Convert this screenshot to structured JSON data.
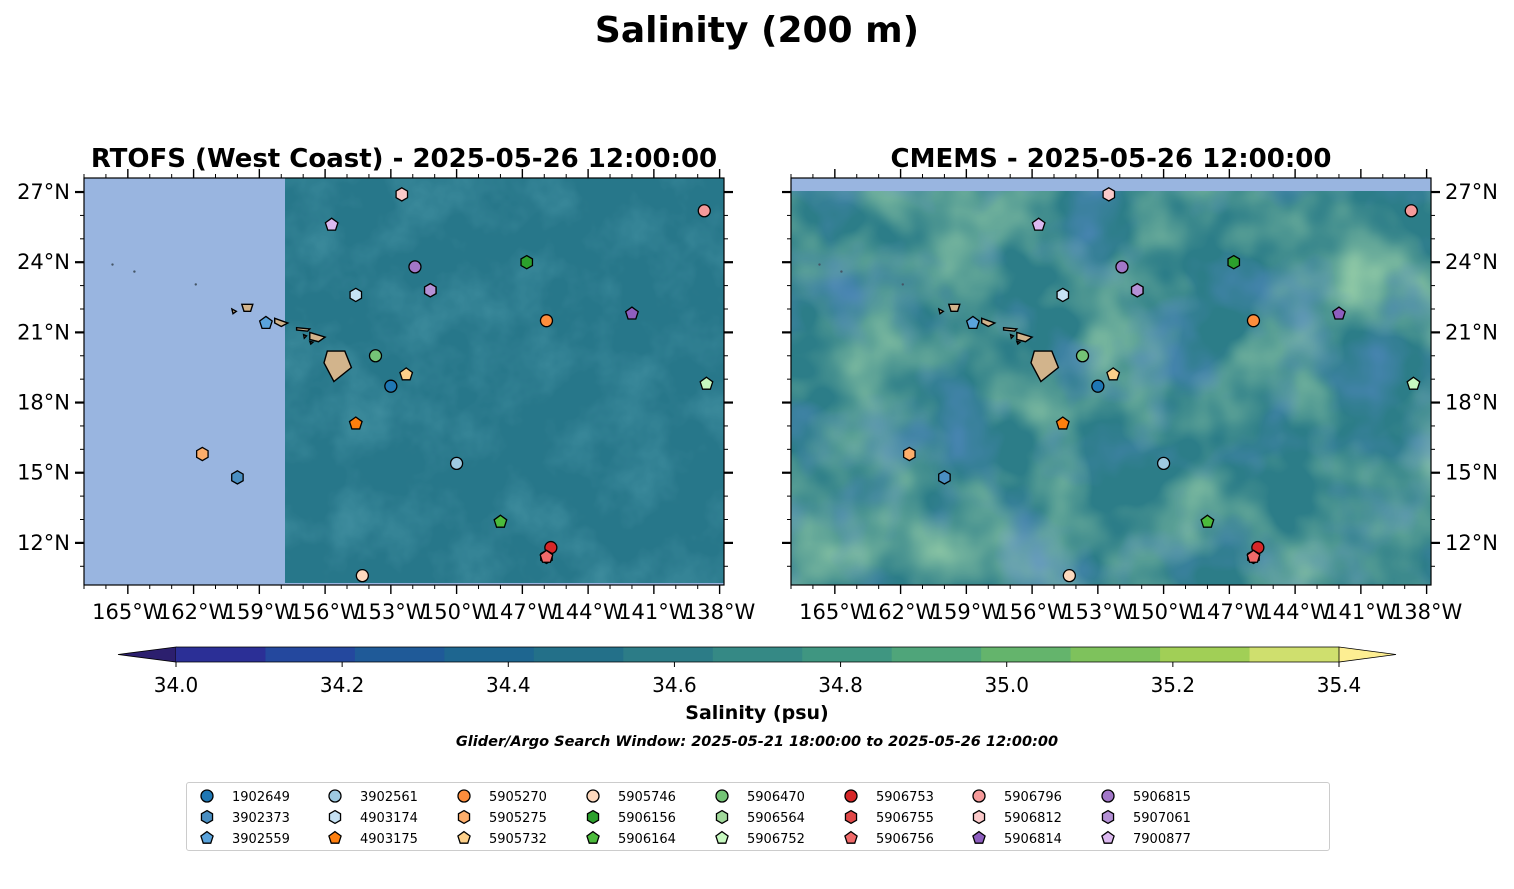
{
  "suptitle": "Salinity (200 m)",
  "panels": [
    {
      "title": "RTOFS (West Coast) - 2025-05-26 12:00:00",
      "lat_axis_side": "left"
    },
    {
      "title": "CMEMS - 2025-05-26 12:00:00",
      "lat_axis_side": "right"
    }
  ],
  "lon_ticks": [
    "165°W",
    "162°W",
    "159°W",
    "156°W",
    "153°W",
    "150°W",
    "147°W",
    "144°W",
    "141°W",
    "138°W"
  ],
  "lat_ticks": [
    "27°N",
    "24°N",
    "21°N",
    "18°N",
    "15°N",
    "12°N"
  ],
  "colorbar": {
    "label": "Salinity (psu)",
    "tick_labels": [
      "34.0",
      "34.2",
      "34.4",
      "34.6",
      "34.8",
      "35.0",
      "35.2",
      "35.4"
    ],
    "colors": [
      "#2c1f6e",
      "#2b2f96",
      "#24489e",
      "#1f5a98",
      "#1e6690",
      "#237089",
      "#2c7c87",
      "#358985",
      "#3f9681",
      "#4fa57a",
      "#64b46c",
      "#7ec25c",
      "#a1cf56",
      "#cfdf6e",
      "#fdee92"
    ]
  },
  "search_window": "Glider/Argo Search Window: 2025-05-21 18:00:00 to 2025-05-26 12:00:00",
  "chart_data": {
    "type": "scatter",
    "lon_range": [
      -167,
      -137.8
    ],
    "lat_range": [
      10.2,
      27.6
    ],
    "floats": [
      {
        "id": "1902649",
        "lon": -153.0,
        "lat": 18.7,
        "color": "#1f77b4",
        "marker": "circle"
      },
      {
        "id": "3902373",
        "lon": -160.0,
        "lat": 14.8,
        "color": "#4a8fc2",
        "marker": "hexagon"
      },
      {
        "id": "3902559",
        "lon": -158.7,
        "lat": 21.4,
        "color": "#5aa3dc",
        "marker": "pentagon"
      },
      {
        "id": "3902561",
        "lon": -150.0,
        "lat": 15.4,
        "color": "#9ecae1",
        "marker": "circle"
      },
      {
        "id": "4903174",
        "lon": -154.6,
        "lat": 22.6,
        "color": "#c6e2f4",
        "marker": "hexagon"
      },
      {
        "id": "4903175",
        "lon": -154.6,
        "lat": 17.1,
        "color": "#ff7f0e",
        "marker": "pentagon"
      },
      {
        "id": "5905270",
        "lon": -145.9,
        "lat": 21.5,
        "color": "#fd8d3c",
        "marker": "circle"
      },
      {
        "id": "5905275",
        "lon": -161.6,
        "lat": 15.8,
        "color": "#fdae6b",
        "marker": "hexagon"
      },
      {
        "id": "5905732",
        "lon": -152.3,
        "lat": 19.2,
        "color": "#fdd08a",
        "marker": "pentagon"
      },
      {
        "id": "5905746",
        "lon": -154.3,
        "lat": 10.6,
        "color": "#fdd9be",
        "marker": "circle"
      },
      {
        "id": "5906156",
        "lon": -146.8,
        "lat": 24.0,
        "color": "#2ca02c",
        "marker": "hexagon"
      },
      {
        "id": "5906164",
        "lon": -148.0,
        "lat": 12.9,
        "color": "#4cbb3c",
        "marker": "pentagon"
      },
      {
        "id": "5906470",
        "lon": -153.7,
        "lat": 20.0,
        "color": "#74c476",
        "marker": "circle"
      },
      {
        "id": "5906564",
        "lon": -151.2,
        "lat": 22.8,
        "color": "#a1d99b",
        "marker": "hexagon"
      },
      {
        "id": "5906752",
        "lon": -138.6,
        "lat": 18.8,
        "color": "#c7f9c0",
        "marker": "pentagon"
      },
      {
        "id": "5906753",
        "lon": -145.7,
        "lat": 11.8,
        "color": "#d62728",
        "marker": "circle"
      },
      {
        "id": "5906755",
        "lon": -145.9,
        "lat": 11.4,
        "color": "#e04848",
        "marker": "hexagon"
      },
      {
        "id": "5906756",
        "lon": -145.9,
        "lat": 11.4,
        "color": "#f06a6a",
        "marker": "pentagon"
      },
      {
        "id": "5906796",
        "lon": -138.7,
        "lat": 26.2,
        "color": "#f59a9a",
        "marker": "circle"
      },
      {
        "id": "5906812",
        "lon": -152.5,
        "lat": 26.9,
        "color": "#fbcaca",
        "marker": "hexagon"
      },
      {
        "id": "5906814",
        "lon": -142.0,
        "lat": 21.8,
        "color": "#8e5ebf",
        "marker": "pentagon"
      },
      {
        "id": "5906815",
        "lon": -151.9,
        "lat": 23.8,
        "color": "#a277c8",
        "marker": "circle"
      },
      {
        "id": "5907061",
        "lon": -151.2,
        "lat": 22.8,
        "color": "#b591d6",
        "marker": "hexagon"
      },
      {
        "id": "7900877",
        "lon": -155.7,
        "lat": 25.6,
        "color": "#dcb9f0",
        "marker": "pentagon"
      }
    ]
  }
}
